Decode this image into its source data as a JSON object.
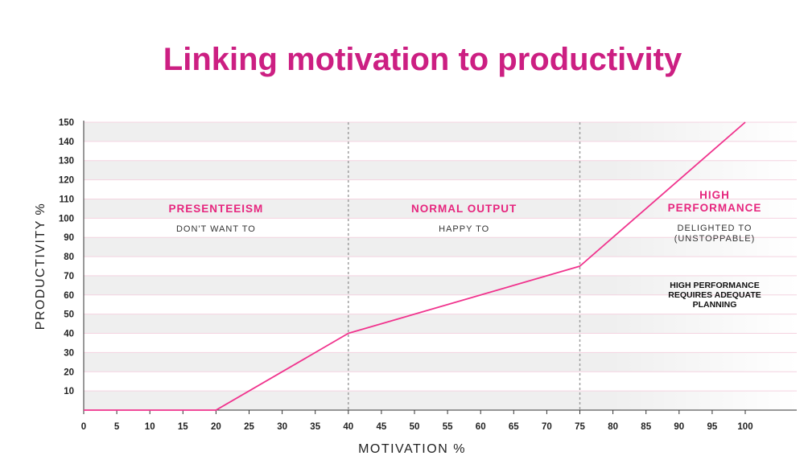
{
  "title": "Linking motivation to productivity",
  "chart_data": {
    "type": "line",
    "xlabel": "MOTIVATION %",
    "ylabel": "PRODUCTIVITY %",
    "xlim": [
      0,
      105
    ],
    "ylim": [
      0,
      150
    ],
    "x_ticks": [
      0,
      5,
      10,
      15,
      20,
      25,
      30,
      35,
      40,
      45,
      50,
      55,
      60,
      65,
      70,
      75,
      80,
      85,
      90,
      95,
      100
    ],
    "y_ticks": [
      10,
      20,
      30,
      40,
      50,
      60,
      70,
      80,
      90,
      100,
      110,
      120,
      130,
      140,
      150
    ],
    "series": [
      {
        "x": [
          0,
          20,
          40,
          75,
          100
        ],
        "y": [
          0,
          0,
          40,
          75,
          150
        ],
        "color": "#f0338d"
      }
    ],
    "dividers": [
      40,
      75
    ],
    "zones": [
      {
        "x_range": [
          0,
          40
        ],
        "heading": [
          "PRESENTEEISM"
        ],
        "subtitle": [
          "DON'T WANT TO"
        ]
      },
      {
        "x_range": [
          40,
          75
        ],
        "heading": [
          "NORMAL OUTPUT"
        ],
        "subtitle": [
          "HAPPY TO"
        ]
      },
      {
        "x_range": [
          75,
          105
        ],
        "heading": [
          "HIGH",
          "PERFORMANCE"
        ],
        "subtitle": [
          "DELIGHTED TO",
          "(UNSTOPPABLE)"
        ],
        "note": [
          "HIGH PERFORMANCE",
          "REQUIRES ADEQUATE",
          "PLANNING"
        ]
      }
    ],
    "grid": true,
    "colors": {
      "line": "#f0338d",
      "band": "#efefef",
      "gridline": "#f4d3e0",
      "divider": "#9a9a9a",
      "heading": "#e6267e"
    }
  }
}
